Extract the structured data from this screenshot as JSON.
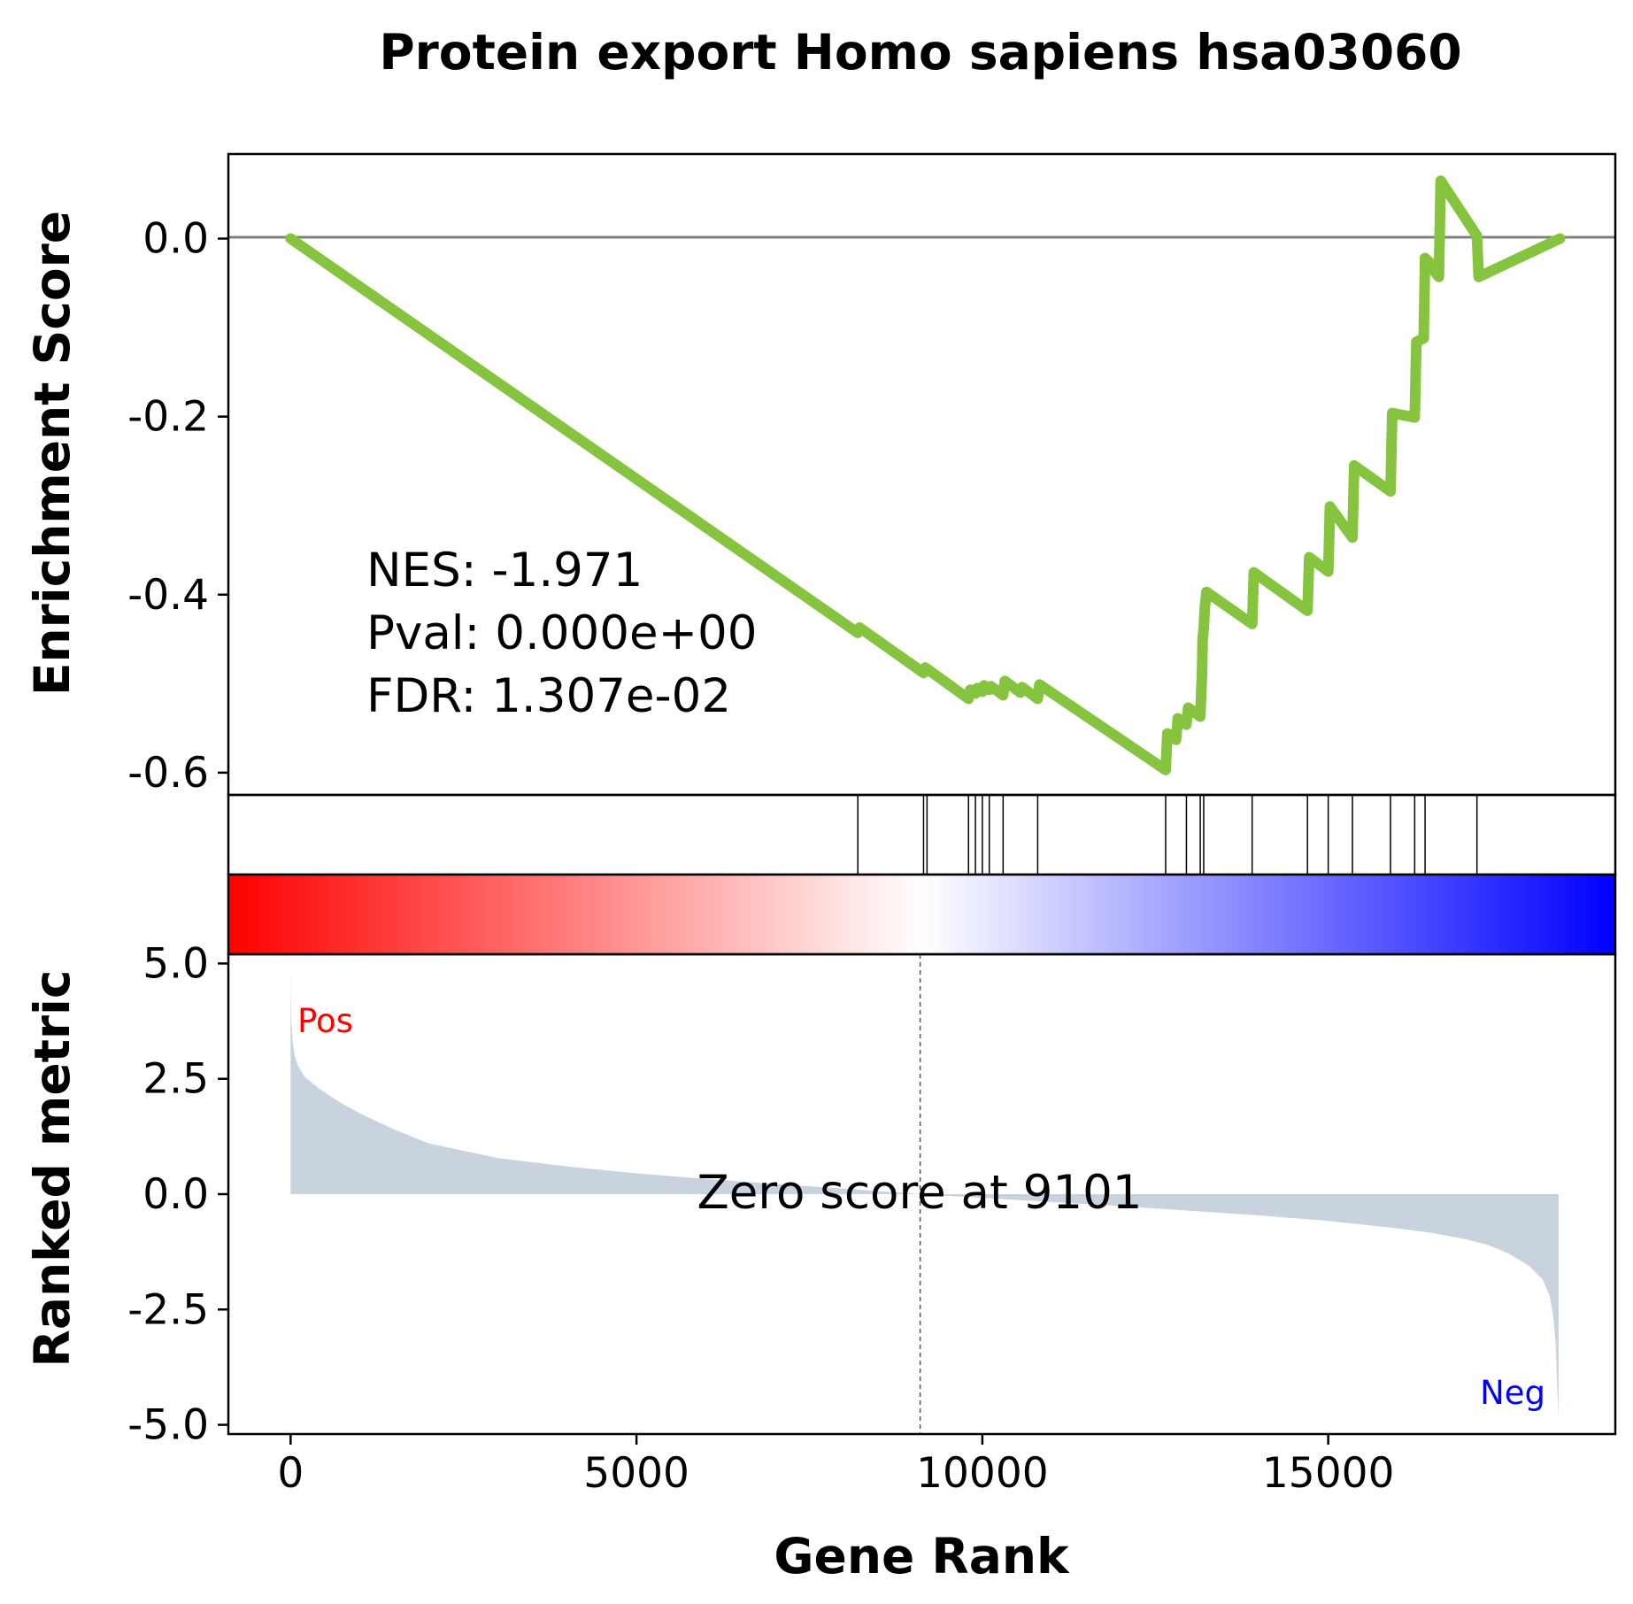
{
  "chart_data": {
    "type": "line",
    "title": "Protein export Homo sapiens hsa03060",
    "xlabel": "Gene Rank",
    "xlim": [
      -900,
      19150
    ],
    "xticks": [
      "0",
      "5000",
      "10000",
      "15000"
    ],
    "enrichment_panel": {
      "ylabel": "Enrichment Score",
      "ylim": [
        -0.625,
        0.095
      ],
      "yticks": [
        "0.0",
        "-0.2",
        "-0.4",
        "-0.6"
      ],
      "baseline": 0.0,
      "line_color": "#86c440",
      "series": [
        {
          "x": [
            0,
            8200,
            8225,
            9150,
            9175,
            9800,
            9825,
            9900,
            9925,
            10000,
            10025,
            10100,
            10125,
            10300,
            10325,
            10550,
            10575,
            10800,
            10825,
            12650,
            12675,
            12800,
            12825,
            12950,
            12975,
            13150,
            13175,
            13185,
            13200,
            13215,
            13240,
            13900,
            13925,
            14700,
            14725,
            15000,
            15025,
            15350,
            15375,
            15900,
            15925,
            16250,
            16275,
            16380,
            16400,
            16520,
            16545,
            16600,
            16625,
            17150,
            17175,
            18350
          ],
          "y": [
            0.0,
            -0.443,
            -0.437,
            -0.488,
            -0.482,
            -0.517,
            -0.507,
            -0.511,
            -0.505,
            -0.509,
            -0.502,
            -0.507,
            -0.503,
            -0.513,
            -0.497,
            -0.51,
            -0.504,
            -0.517,
            -0.501,
            -0.597,
            -0.556,
            -0.563,
            -0.539,
            -0.546,
            -0.527,
            -0.537,
            -0.49,
            -0.45,
            -0.438,
            -0.415,
            -0.397,
            -0.433,
            -0.375,
            -0.418,
            -0.358,
            -0.374,
            -0.301,
            -0.336,
            -0.255,
            -0.284,
            -0.196,
            -0.201,
            -0.116,
            -0.112,
            -0.022,
            -0.031,
            -0.038,
            -0.043,
            0.065,
            0.003,
            -0.043,
            0.0
          ]
        }
      ],
      "stats": [
        "NES: -1.971",
        "Pval: 0.000e+00",
        "FDR: 1.307e-02"
      ]
    },
    "hits": [
      8200,
      9150,
      9200,
      9800,
      9900,
      10000,
      10100,
      10300,
      10800,
      12650,
      12950,
      13150,
      13200,
      13900,
      14700,
      15000,
      15350,
      15900,
      16250,
      16400,
      17150
    ],
    "colorbar": {
      "from": "#ff0000",
      "mid": "#ffffff",
      "to": "#0000ff"
    },
    "ranked_panel": {
      "ylabel": "Ranked metric",
      "ylim": [
        -5.2,
        5.2
      ],
      "yticks": [
        "5.0",
        "2.5",
        "0.0",
        "-2.5",
        "-5.0"
      ],
      "fill_color": "#c9d3dd",
      "x": [
        0,
        2,
        10,
        30,
        60,
        100,
        200,
        400,
        700,
        1000,
        1500,
        2000,
        3000,
        4000,
        5000,
        6000,
        7000,
        8000,
        9101,
        10000,
        11000,
        12000,
        13000,
        14000,
        15000,
        16000,
        16500,
        17000,
        17300,
        17600,
        17900,
        18100,
        18200,
        18260,
        18290,
        18310,
        18330
      ],
      "values": [
        5.0,
        4.4,
        3.8,
        3.3,
        3.0,
        2.8,
        2.55,
        2.3,
        2.0,
        1.75,
        1.4,
        1.1,
        0.78,
        0.6,
        0.45,
        0.33,
        0.22,
        0.12,
        0.0,
        -0.08,
        -0.17,
        -0.26,
        -0.36,
        -0.46,
        -0.58,
        -0.74,
        -0.84,
        -0.98,
        -1.1,
        -1.28,
        -1.55,
        -1.85,
        -2.2,
        -2.7,
        -3.3,
        -4.2,
        -4.85
      ],
      "zero_score_label": "Zero score at 9101",
      "zero_x": 9101,
      "pos_label": "Pos",
      "neg_label": "Neg",
      "pos_color": "#ff0000",
      "neg_color": "#0000ff"
    }
  }
}
